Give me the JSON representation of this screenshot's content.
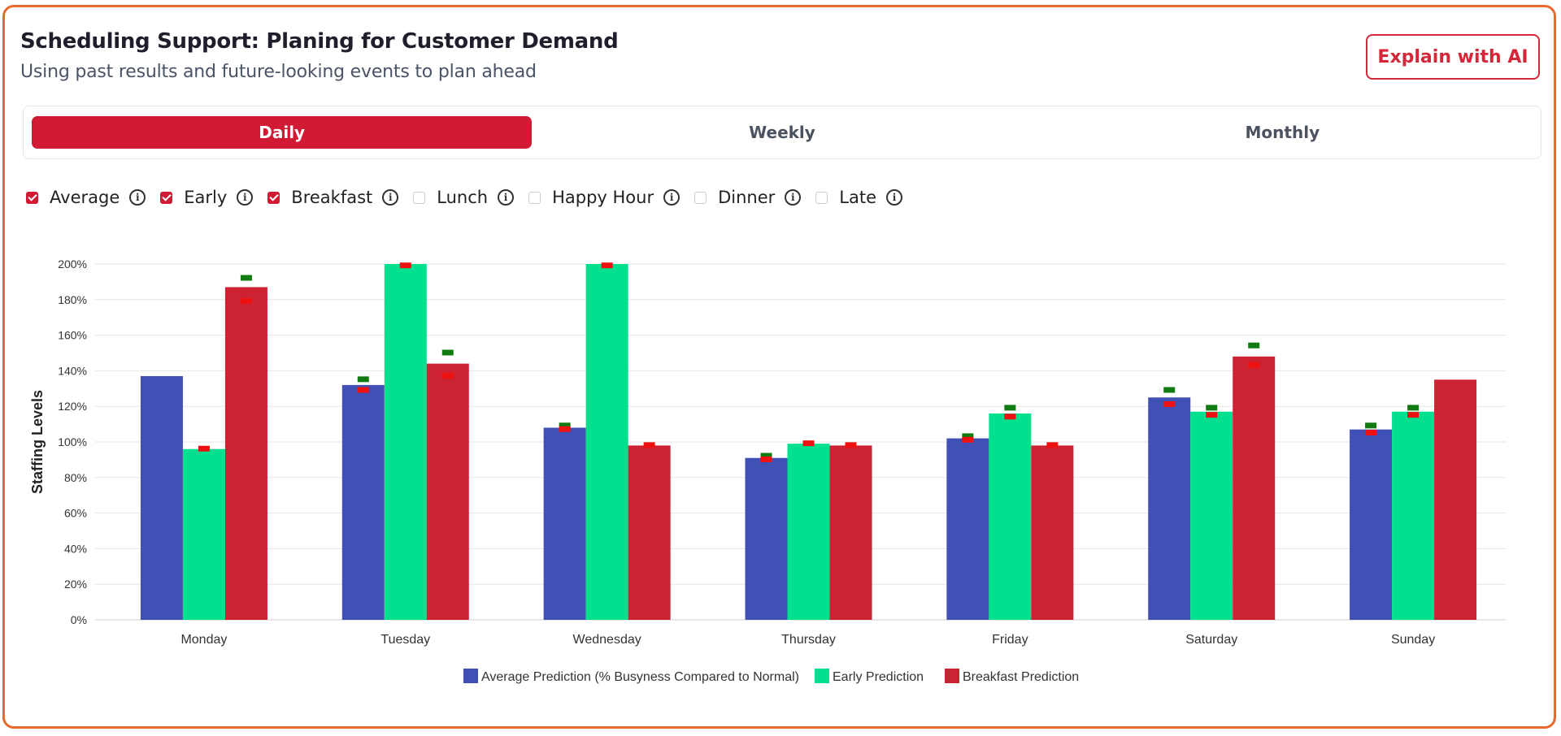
{
  "header": {
    "title": "Scheduling Support: Planing for Customer Demand",
    "subtitle": "Using past results and future-looking events to plan ahead",
    "ai_button": "Explain with AI"
  },
  "tabs": [
    {
      "label": "Daily",
      "active": true
    },
    {
      "label": "Weekly",
      "active": false
    },
    {
      "label": "Monthly",
      "active": false
    }
  ],
  "filters": [
    {
      "label": "Average",
      "checked": true
    },
    {
      "label": "Early",
      "checked": true
    },
    {
      "label": "Breakfast",
      "checked": true
    },
    {
      "label": "Lunch",
      "checked": false
    },
    {
      "label": "Happy Hour",
      "checked": false
    },
    {
      "label": "Dinner",
      "checked": false
    },
    {
      "label": "Late",
      "checked": false
    }
  ],
  "colors": {
    "accent": "#d11a34",
    "average": "#4150b5",
    "early": "#00e08f",
    "breakfast": "#cc2232",
    "marker_green": "#117a11",
    "marker_red": "#ee1111"
  },
  "chart_data": {
    "type": "bar",
    "title": "",
    "xlabel": "",
    "ylabel": "Staffing Levels",
    "ylim": [
      0,
      200
    ],
    "yticks": [
      0,
      20,
      40,
      60,
      80,
      100,
      120,
      140,
      160,
      180,
      200
    ],
    "ytick_suffix": "%",
    "grid": true,
    "legend_position": "bottom",
    "categories": [
      "Monday",
      "Tuesday",
      "Wednesday",
      "Thursday",
      "Friday",
      "Saturday",
      "Sunday"
    ],
    "series": [
      {
        "name": "Average Prediction (% Busyness Compared to Normal)",
        "values": [
          137,
          132,
          108,
          91,
          102,
          125,
          107
        ],
        "markers_high": [
          null,
          135,
          109,
          92,
          103,
          129,
          109
        ],
        "markers_low": [
          null,
          129,
          107,
          90,
          101,
          121,
          105
        ]
      },
      {
        "name": "Early Prediction",
        "values": [
          96,
          200,
          200,
          99,
          116,
          117,
          117
        ],
        "markers_high": [
          null,
          null,
          null,
          null,
          119,
          119,
          119
        ],
        "markers_low": [
          96,
          199,
          199,
          99,
          114,
          115,
          115
        ]
      },
      {
        "name": "Breakfast Prediction",
        "values": [
          187,
          144,
          98,
          98,
          98,
          148,
          135
        ],
        "markers_high": [
          192,
          150,
          null,
          null,
          null,
          154,
          null
        ],
        "markers_low": [
          179,
          137,
          98,
          98,
          98,
          143,
          null
        ]
      }
    ]
  }
}
